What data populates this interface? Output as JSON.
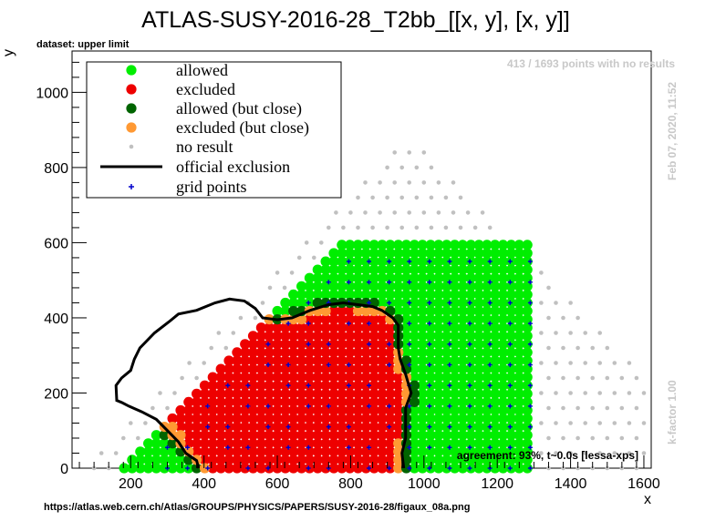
{
  "chart_data": {
    "type": "scatter",
    "title": "ATLAS-SUSY-2016-28_T2bb_[[x, y], [x, y]]",
    "subtitle": "dataset: upper limit",
    "xlabel": "x",
    "ylabel": "y",
    "xlim": [
      40,
      1620
    ],
    "ylim": [
      0,
      1110
    ],
    "xticks": [
      200,
      400,
      600,
      800,
      1000,
      1200,
      1400,
      1600
    ],
    "yticks": [
      0,
      200,
      400,
      600,
      800,
      1000
    ],
    "legend_position": "top-left",
    "legend": [
      {
        "label": "allowed",
        "symbol": "dot",
        "color": "#00ee00"
      },
      {
        "label": "excluded",
        "symbol": "dot",
        "color": "#ee0000"
      },
      {
        "label": "allowed (but close)",
        "symbol": "dot",
        "color": "#006400"
      },
      {
        "label": "excluded (but close)",
        "symbol": "dot",
        "color": "#ff9933"
      },
      {
        "label": "no result",
        "symbol": "small-dot",
        "color": "#c0c0c0"
      },
      {
        "label": "official exclusion",
        "symbol": "line",
        "color": "#000000"
      },
      {
        "label": "grid points",
        "symbol": "cross",
        "color": "#0000cc"
      }
    ],
    "official_exclusion": [
      [
        385,
        0
      ],
      [
        380,
        20
      ],
      [
        350,
        40
      ],
      [
        330,
        70
      ],
      [
        300,
        100
      ],
      [
        270,
        130
      ],
      [
        230,
        150
      ],
      [
        195,
        165
      ],
      [
        175,
        175
      ],
      [
        162,
        180
      ],
      [
        160,
        220
      ],
      [
        175,
        240
      ],
      [
        200,
        260
      ],
      [
        210,
        290
      ],
      [
        225,
        320
      ],
      [
        265,
        360
      ],
      [
        305,
        390
      ],
      [
        330,
        410
      ],
      [
        380,
        420
      ],
      [
        430,
        440
      ],
      [
        470,
        450
      ],
      [
        510,
        445
      ],
      [
        540,
        425
      ],
      [
        560,
        400
      ],
      [
        600,
        395
      ],
      [
        640,
        400
      ],
      [
        690,
        420
      ],
      [
        740,
        435
      ],
      [
        780,
        440
      ],
      [
        820,
        435
      ],
      [
        860,
        430
      ],
      [
        885,
        420
      ],
      [
        915,
        400
      ],
      [
        930,
        380
      ],
      [
        930,
        350
      ],
      [
        930,
        320
      ],
      [
        935,
        290
      ],
      [
        950,
        250
      ],
      [
        965,
        200
      ],
      [
        950,
        160
      ],
      [
        950,
        120
      ],
      [
        950,
        80
      ],
      [
        940,
        40
      ],
      [
        945,
        0
      ]
    ],
    "allowed_region": {
      "x_range": [
        40,
        1300
      ],
      "y_range": [
        0,
        600
      ],
      "color": "#00ee00"
    },
    "excluded_region": {
      "x_range": [
        170,
        960
      ],
      "y_range": [
        0,
        440
      ],
      "color": "#ee0000"
    },
    "no_result_region": {
      "x_range": [
        40,
        1620
      ],
      "y_range": [
        0,
        1110
      ],
      "color": "#c0c0c0"
    },
    "watermark_points": "413 / 1693 points with no results",
    "watermark_date": "Feb 07, 2020, 11:52",
    "watermark_kfactor": "k-factor 1.00",
    "agreement": "agreement: 93%, t~0.0s [lessa-xps]",
    "source_url": "https://atlas.web.cern.ch/Atlas/GROUPS/PHYSICS/PAPERS/SUSY-2016-28/figaux_08a.png"
  }
}
